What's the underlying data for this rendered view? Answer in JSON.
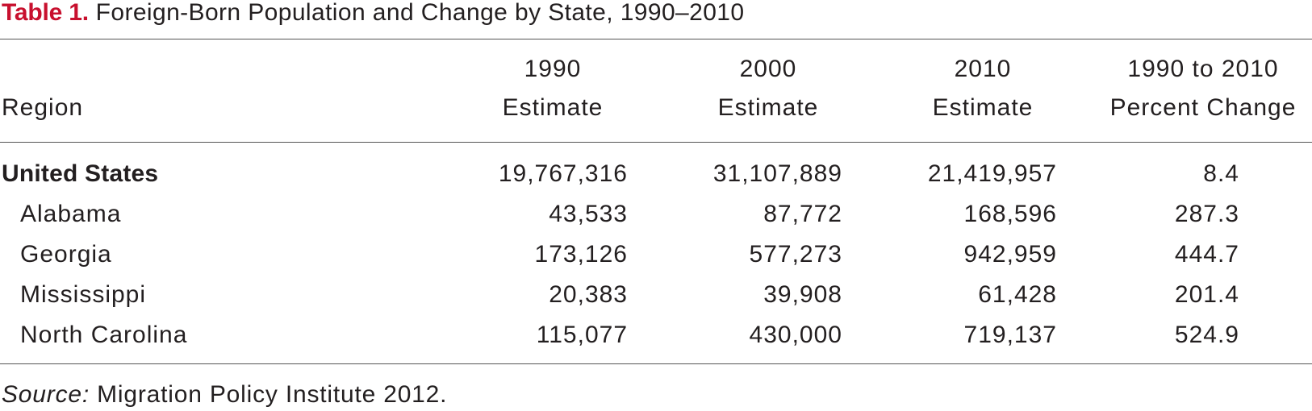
{
  "table": {
    "label": "Table 1.",
    "title": "Foreign-Born Population and Change by State, 1990–2010",
    "columns": {
      "region": "Region",
      "y1990_line1": "1990",
      "y1990_line2": "Estimate",
      "y2000_line1": "2000",
      "y2000_line2": "Estimate",
      "y2010_line1": "2010",
      "y2010_line2": "Estimate",
      "change_line1": "1990 to 2010",
      "change_line2": "Percent Change"
    },
    "rows": [
      {
        "region": "United States",
        "e1990": "19,767,316",
        "e2000": "31,107,889",
        "e2010": "21,419,957",
        "change": "8.4"
      },
      {
        "region": "Alabama",
        "e1990": "43,533",
        "e2000": "87,772",
        "e2010": "168,596",
        "change": "287.3"
      },
      {
        "region": "Georgia",
        "e1990": "173,126",
        "e2000": "577,273",
        "e2010": "942,959",
        "change": "444.7"
      },
      {
        "region": "Mississippi",
        "e1990": "20,383",
        "e2000": "39,908",
        "e2010": "61,428",
        "change": "201.4"
      },
      {
        "region": "North Carolina",
        "e1990": "115,077",
        "e2000": "430,000",
        "e2010": "719,137",
        "change": "524.9"
      }
    ],
    "source_label": "Source:",
    "source_text": "Migration Policy Institute 2012."
  }
}
